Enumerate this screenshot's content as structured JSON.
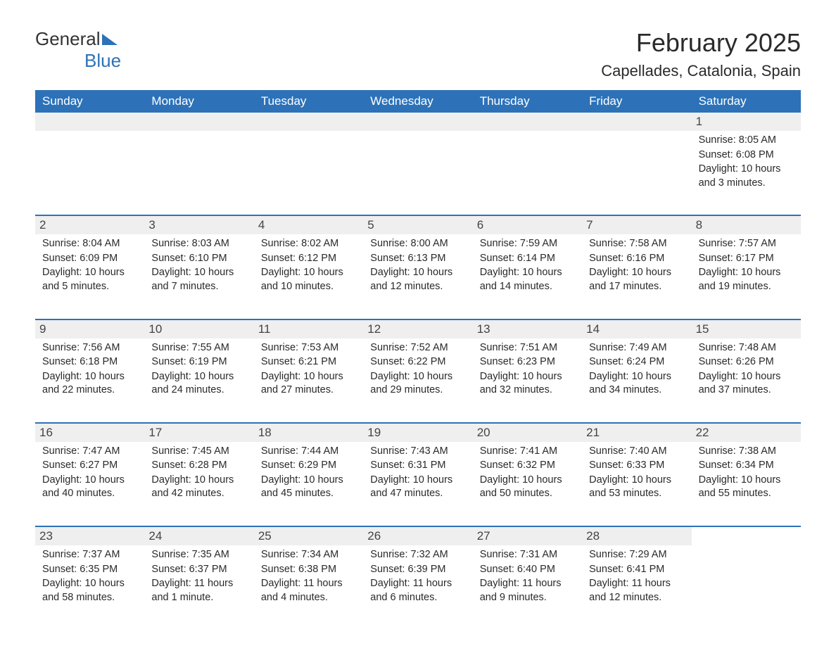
{
  "brand": {
    "prefix": "General",
    "suffix": "Blue"
  },
  "title": "February 2025",
  "location": "Capellades, Catalonia, Spain",
  "colors": {
    "header_bg": "#2d72b8",
    "header_text": "#ffffff",
    "day_number_bg": "#efefef",
    "body_text": "#2a2a2a",
    "week_border": "#2d72b8"
  },
  "weekdays": [
    "Sunday",
    "Monday",
    "Tuesday",
    "Wednesday",
    "Thursday",
    "Friday",
    "Saturday"
  ],
  "weeks": [
    [
      {
        "n": "",
        "empty": true
      },
      {
        "n": "",
        "empty": true
      },
      {
        "n": "",
        "empty": true
      },
      {
        "n": "",
        "empty": true
      },
      {
        "n": "",
        "empty": true
      },
      {
        "n": "",
        "empty": true
      },
      {
        "n": "1",
        "sunrise": "8:05 AM",
        "sunset": "6:08 PM",
        "daylight": "10 hours and 3 minutes."
      }
    ],
    [
      {
        "n": "2",
        "sunrise": "8:04 AM",
        "sunset": "6:09 PM",
        "daylight": "10 hours and 5 minutes."
      },
      {
        "n": "3",
        "sunrise": "8:03 AM",
        "sunset": "6:10 PM",
        "daylight": "10 hours and 7 minutes."
      },
      {
        "n": "4",
        "sunrise": "8:02 AM",
        "sunset": "6:12 PM",
        "daylight": "10 hours and 10 minutes."
      },
      {
        "n": "5",
        "sunrise": "8:00 AM",
        "sunset": "6:13 PM",
        "daylight": "10 hours and 12 minutes."
      },
      {
        "n": "6",
        "sunrise": "7:59 AM",
        "sunset": "6:14 PM",
        "daylight": "10 hours and 14 minutes."
      },
      {
        "n": "7",
        "sunrise": "7:58 AM",
        "sunset": "6:16 PM",
        "daylight": "10 hours and 17 minutes."
      },
      {
        "n": "8",
        "sunrise": "7:57 AM",
        "sunset": "6:17 PM",
        "daylight": "10 hours and 19 minutes."
      }
    ],
    [
      {
        "n": "9",
        "sunrise": "7:56 AM",
        "sunset": "6:18 PM",
        "daylight": "10 hours and 22 minutes."
      },
      {
        "n": "10",
        "sunrise": "7:55 AM",
        "sunset": "6:19 PM",
        "daylight": "10 hours and 24 minutes."
      },
      {
        "n": "11",
        "sunrise": "7:53 AM",
        "sunset": "6:21 PM",
        "daylight": "10 hours and 27 minutes."
      },
      {
        "n": "12",
        "sunrise": "7:52 AM",
        "sunset": "6:22 PM",
        "daylight": "10 hours and 29 minutes."
      },
      {
        "n": "13",
        "sunrise": "7:51 AM",
        "sunset": "6:23 PM",
        "daylight": "10 hours and 32 minutes."
      },
      {
        "n": "14",
        "sunrise": "7:49 AM",
        "sunset": "6:24 PM",
        "daylight": "10 hours and 34 minutes."
      },
      {
        "n": "15",
        "sunrise": "7:48 AM",
        "sunset": "6:26 PM",
        "daylight": "10 hours and 37 minutes."
      }
    ],
    [
      {
        "n": "16",
        "sunrise": "7:47 AM",
        "sunset": "6:27 PM",
        "daylight": "10 hours and 40 minutes."
      },
      {
        "n": "17",
        "sunrise": "7:45 AM",
        "sunset": "6:28 PM",
        "daylight": "10 hours and 42 minutes."
      },
      {
        "n": "18",
        "sunrise": "7:44 AM",
        "sunset": "6:29 PM",
        "daylight": "10 hours and 45 minutes."
      },
      {
        "n": "19",
        "sunrise": "7:43 AM",
        "sunset": "6:31 PM",
        "daylight": "10 hours and 47 minutes."
      },
      {
        "n": "20",
        "sunrise": "7:41 AM",
        "sunset": "6:32 PM",
        "daylight": "10 hours and 50 minutes."
      },
      {
        "n": "21",
        "sunrise": "7:40 AM",
        "sunset": "6:33 PM",
        "daylight": "10 hours and 53 minutes."
      },
      {
        "n": "22",
        "sunrise": "7:38 AM",
        "sunset": "6:34 PM",
        "daylight": "10 hours and 55 minutes."
      }
    ],
    [
      {
        "n": "23",
        "sunrise": "7:37 AM",
        "sunset": "6:35 PM",
        "daylight": "10 hours and 58 minutes."
      },
      {
        "n": "24",
        "sunrise": "7:35 AM",
        "sunset": "6:37 PM",
        "daylight": "11 hours and 1 minute."
      },
      {
        "n": "25",
        "sunrise": "7:34 AM",
        "sunset": "6:38 PM",
        "daylight": "11 hours and 4 minutes."
      },
      {
        "n": "26",
        "sunrise": "7:32 AM",
        "sunset": "6:39 PM",
        "daylight": "11 hours and 6 minutes."
      },
      {
        "n": "27",
        "sunrise": "7:31 AM",
        "sunset": "6:40 PM",
        "daylight": "11 hours and 9 minutes."
      },
      {
        "n": "28",
        "sunrise": "7:29 AM",
        "sunset": "6:41 PM",
        "daylight": "11 hours and 12 minutes."
      },
      {
        "n": "",
        "empty": true,
        "noBg": true
      }
    ]
  ],
  "labels": {
    "sunrise": "Sunrise: ",
    "sunset": "Sunset: ",
    "daylight": "Daylight: "
  }
}
